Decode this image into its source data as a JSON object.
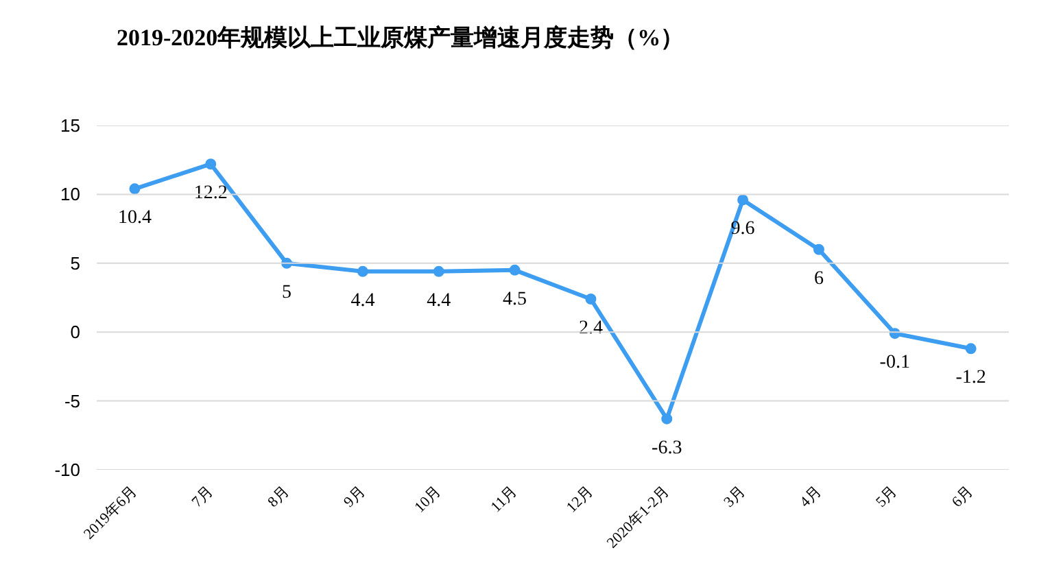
{
  "chart_data": {
    "type": "line",
    "title": "2019-2020年规模以上工业原煤产量增速月度走势（%）",
    "categories": [
      "2019年6月",
      "7月",
      "8月",
      "9月",
      "10月",
      "11月",
      "12月",
      "2020年1-2月",
      "3月",
      "4月",
      "5月",
      "6月"
    ],
    "series": [
      {
        "color": "#3d9df0",
        "values": [
          10.4,
          12.2,
          5,
          4.4,
          4.4,
          4.5,
          2.4,
          -6.3,
          9.6,
          6,
          -0.1,
          -1.2
        ]
      }
    ],
    "ylim": [
      -10,
      15
    ],
    "yticks": [
      -10,
      -5,
      0,
      5,
      10,
      15
    ],
    "grid": "y",
    "marker": "circle",
    "line_style": "solid",
    "data_labels": true
  }
}
